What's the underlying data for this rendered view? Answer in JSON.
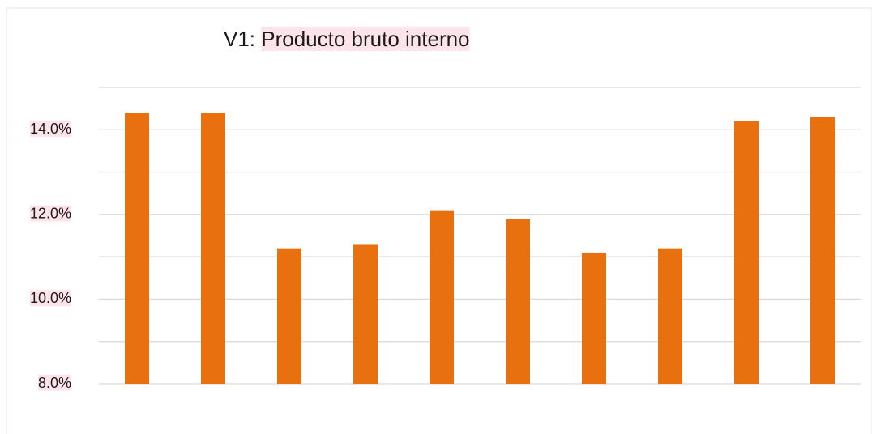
{
  "chart_data": {
    "type": "bar",
    "title": "V1: Producto bruto interno",
    "categories": [
      null,
      null,
      null,
      null,
      null,
      null,
      null,
      null,
      null,
      null
    ],
    "values": [
      14.4,
      14.4,
      11.2,
      11.3,
      12.1,
      11.9,
      11.1,
      11.2,
      14.2,
      14.3
    ],
    "color": "#e9700e",
    "ylim": [
      8,
      15
    ],
    "yticks": [
      {
        "value": 8,
        "label": "8.0%"
      },
      {
        "value": 10,
        "label": "10.0%"
      },
      {
        "value": 12,
        "label": "12.0%"
      },
      {
        "value": 14,
        "label": "14.0%"
      }
    ],
    "minor_yticks": [
      9,
      11,
      13,
      15
    ],
    "grid": true
  }
}
